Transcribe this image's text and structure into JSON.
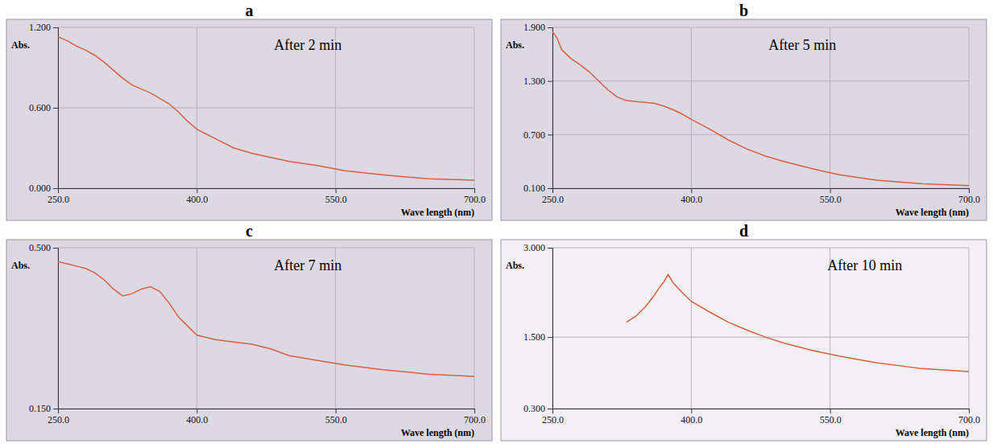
{
  "chart_data": [
    {
      "type": "line",
      "panel": "a",
      "title": "After 2 min",
      "x_label": "Wave length (nm)",
      "y_label": "Abs.",
      "color": "#d9603b",
      "grid": true,
      "xlim": [
        250,
        700
      ],
      "ylim": [
        0,
        1.2
      ],
      "xticks": [
        {
          "value": 250,
          "label": "250.0"
        },
        {
          "value": 400,
          "label": "400.0"
        },
        {
          "value": 550,
          "label": "550.0"
        },
        {
          "value": 700,
          "label": "700.0"
        }
      ],
      "yticks": [
        {
          "value": 0,
          "label": "0.000"
        },
        {
          "value": 0.6,
          "label": "0.600"
        },
        {
          "value": 1.2,
          "label": "1.200"
        }
      ],
      "x": [
        250,
        260,
        270,
        280,
        290,
        300,
        310,
        320,
        330,
        340,
        350,
        360,
        370,
        380,
        390,
        400,
        420,
        440,
        460,
        480,
        500,
        530,
        560,
        600,
        650,
        700
      ],
      "values": [
        1.13,
        1.1,
        1.06,
        1.03,
        0.99,
        0.94,
        0.88,
        0.82,
        0.77,
        0.74,
        0.71,
        0.67,
        0.63,
        0.57,
        0.5,
        0.44,
        0.37,
        0.3,
        0.26,
        0.23,
        0.2,
        0.17,
        0.13,
        0.1,
        0.07,
        0.06
      ]
    },
    {
      "type": "line",
      "panel": "b",
      "title": "After 5 min",
      "x_label": "Wave length (nm)",
      "y_label": "Abs.",
      "color": "#d9603b",
      "grid": true,
      "xlim": [
        250,
        700
      ],
      "ylim": [
        0.1,
        1.9
      ],
      "xticks": [
        {
          "value": 250,
          "label": "250.0"
        },
        {
          "value": 400,
          "label": "400.0"
        },
        {
          "value": 550,
          "label": "550.0"
        },
        {
          "value": 700,
          "label": "700.0"
        }
      ],
      "yticks": [
        {
          "value": 0.1,
          "label": "0.100"
        },
        {
          "value": 0.7,
          "label": "0.700"
        },
        {
          "value": 1.3,
          "label": "1.300"
        },
        {
          "value": 1.9,
          "label": "1.900"
        }
      ],
      "x": [
        250,
        255,
        260,
        270,
        280,
        290,
        300,
        310,
        320,
        330,
        340,
        350,
        360,
        370,
        380,
        390,
        400,
        420,
        440,
        460,
        480,
        500,
        530,
        560,
        600,
        650,
        700
      ],
      "values": [
        1.85,
        1.78,
        1.65,
        1.55,
        1.48,
        1.4,
        1.3,
        1.2,
        1.12,
        1.08,
        1.07,
        1.06,
        1.05,
        1.02,
        0.98,
        0.93,
        0.87,
        0.76,
        0.64,
        0.54,
        0.46,
        0.4,
        0.32,
        0.25,
        0.19,
        0.15,
        0.13
      ]
    },
    {
      "type": "line",
      "panel": "c",
      "title": "After 7 min",
      "x_label": "Wave length (nm)",
      "y_label": "Abs.",
      "color": "#d9603b",
      "grid": true,
      "xlim": [
        250,
        700
      ],
      "ylim": [
        0.15,
        0.5
      ],
      "xticks": [
        {
          "value": 250,
          "label": "250.0"
        },
        {
          "value": 400,
          "label": "400.0"
        },
        {
          "value": 550,
          "label": "550.0"
        },
        {
          "value": 700,
          "label": "700.0"
        }
      ],
      "yticks": [
        {
          "value": 0.15,
          "label": "0.150"
        },
        {
          "value": 0.5,
          "label": "0.500"
        }
      ],
      "x": [
        250,
        260,
        270,
        280,
        290,
        300,
        310,
        320,
        330,
        340,
        350,
        360,
        370,
        380,
        390,
        400,
        420,
        440,
        460,
        480,
        500,
        530,
        560,
        600,
        650,
        700
      ],
      "values": [
        0.47,
        0.465,
        0.46,
        0.455,
        0.445,
        0.43,
        0.41,
        0.395,
        0.4,
        0.41,
        0.415,
        0.405,
        0.38,
        0.35,
        0.33,
        0.31,
        0.3,
        0.295,
        0.29,
        0.28,
        0.265,
        0.255,
        0.245,
        0.235,
        0.225,
        0.22
      ]
    },
    {
      "type": "line",
      "panel": "d",
      "title": "After 10 min",
      "x_label": "Wave length (nm)",
      "y_label": "Abs.",
      "color": "#d9603b",
      "grid": true,
      "xlim": [
        250,
        700
      ],
      "ylim": [
        0.3,
        3.0
      ],
      "xticks": [
        {
          "value": 250,
          "label": "250.0"
        },
        {
          "value": 400,
          "label": "400.0"
        },
        {
          "value": 550,
          "label": "550.0"
        },
        {
          "value": 700,
          "label": "700.0"
        }
      ],
      "yticks": [
        {
          "value": 0.3,
          "label": "0.300"
        },
        {
          "value": 1.5,
          "label": "1.500"
        },
        {
          "value": 3.0,
          "label": "3.000"
        }
      ],
      "x": [
        330,
        340,
        350,
        360,
        365,
        370,
        375,
        380,
        390,
        400,
        420,
        440,
        460,
        480,
        500,
        530,
        560,
        600,
        650,
        700
      ],
      "values": [
        1.75,
        1.85,
        2.0,
        2.2,
        2.32,
        2.42,
        2.55,
        2.42,
        2.25,
        2.1,
        1.92,
        1.75,
        1.62,
        1.5,
        1.4,
        1.28,
        1.18,
        1.07,
        0.97,
        0.92
      ]
    }
  ]
}
